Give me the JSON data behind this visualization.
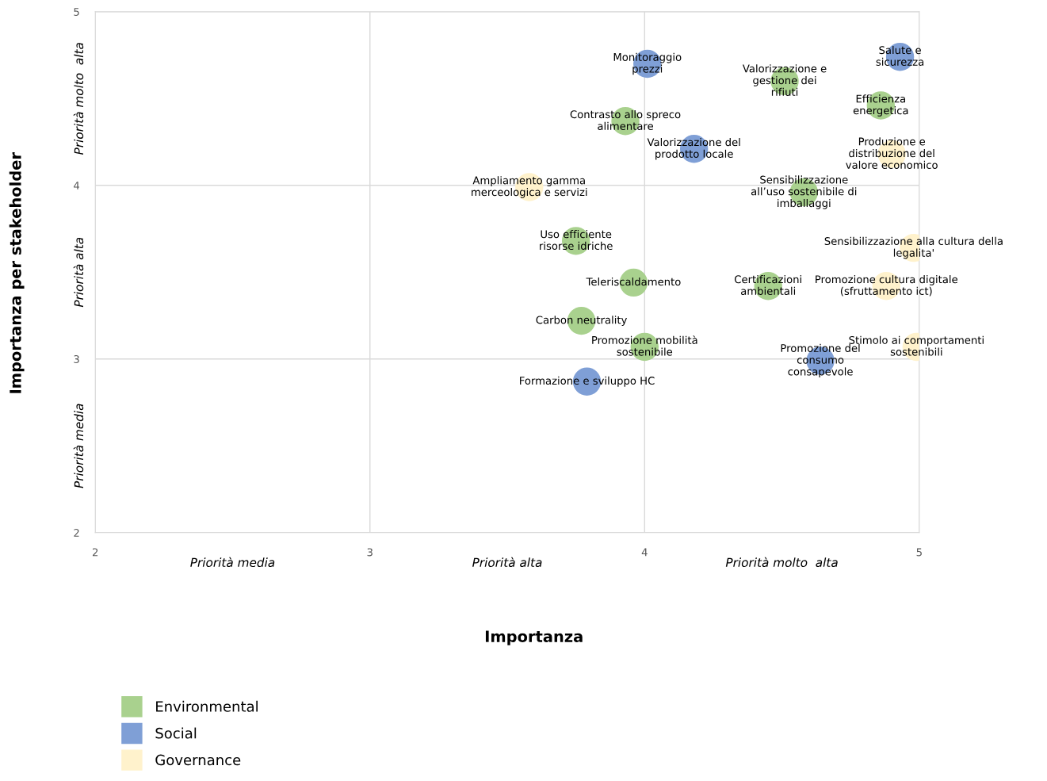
{
  "chart_data": {
    "type": "scatter",
    "xlabel": "Importanza",
    "ylabel": "Importanza per stakeholder",
    "xlim": [
      2,
      5
    ],
    "ylim": [
      2,
      5
    ],
    "xticks": [
      2,
      3,
      4,
      5
    ],
    "yticks": [
      2,
      3,
      4,
      5
    ],
    "grid": true,
    "legend": "bottom left",
    "marker": "circle",
    "series": [
      {
        "name": "Environmental",
        "color": "#a9d18e",
        "x": [
          4.51,
          4.86,
          3.93,
          4.58,
          3.75,
          3.96,
          4.45,
          3.77,
          4.0
        ],
        "values": [
          4.6,
          4.46,
          4.37,
          3.96,
          3.68,
          3.44,
          3.42,
          3.22,
          3.07
        ]
      },
      {
        "name": "Social",
        "color": "#7f9fd6",
        "x": [
          4.01,
          4.93,
          4.18,
          4.64,
          3.79
        ],
        "values": [
          4.7,
          4.74,
          4.21,
          2.99,
          2.87
        ]
      },
      {
        "name": "Governance",
        "color": "#fff2cc",
        "x": [
          4.9,
          3.58,
          4.98,
          4.88,
          4.99
        ],
        "values": [
          4.18,
          3.99,
          3.64,
          3.42,
          3.07
        ]
      }
    ],
    "annotations": [
      "Priorità media",
      "Priorità alta",
      "Priorità molto  alta",
      "Priorità media",
      "Priorità alta",
      "Priorità molto  alta",
      {
        "text": "Monitoraggio\nprezzi",
        "x": 4.01,
        "y": 4.7
      },
      {
        "text": "Salute e\nsicurezza",
        "x": 4.93,
        "y": 4.74
      },
      {
        "text": "Valorizzazione e\ngestione dei\nrifiuti",
        "x": 4.51,
        "y": 4.6
      },
      {
        "text": "Efficienza\nenergetica",
        "x": 4.86,
        "y": 4.46
      },
      {
        "text": "Contrasto allo spreco\nalimentare",
        "x": 3.93,
        "y": 4.37
      },
      {
        "text": "Valorizzazione del\nprodotto locale",
        "x": 4.18,
        "y": 4.21
      },
      {
        "text": "Produzione e\ndistribuzione del\nvalore economico",
        "x": 4.9,
        "y": 4.18
      },
      {
        "text": "Ampliamento gamma\nmerceologica e servizi",
        "x": 3.58,
        "y": 3.99
      },
      {
        "text": "Sensibilizzazione\nall’uso sostenibile di\nimballaggi",
        "x": 4.58,
        "y": 3.96
      },
      {
        "text": "Uso efficiente\nrisorse idriche",
        "x": 3.75,
        "y": 3.68
      },
      {
        "text": "Sensibilizzazione alla cultura della\nlegalita'",
        "x": 4.98,
        "y": 3.64
      },
      {
        "text": "Teleriscaldamento",
        "x": 3.96,
        "y": 3.44
      },
      {
        "text": "Certificazioni\nambientali",
        "x": 4.45,
        "y": 3.42
      },
      {
        "text": "Promozione cultura digitale\n(sfruttamento ict)",
        "x": 4.88,
        "y": 3.42
      },
      {
        "text": "Carbon neutrality",
        "x": 3.77,
        "y": 3.22
      },
      {
        "text": "Promozione mobilità\nsostenibile",
        "x": 4.0,
        "y": 3.07
      },
      {
        "text": "Stimolo ai comportamenti\nsostenibili",
        "x": 4.99,
        "y": 3.07
      },
      {
        "text": "Promozione del\nconsumo\nconsapevole",
        "x": 4.64,
        "y": 2.99
      },
      {
        "text": "Formazione e sviluppo HC",
        "x": 3.79,
        "y": 2.87
      }
    ]
  }
}
